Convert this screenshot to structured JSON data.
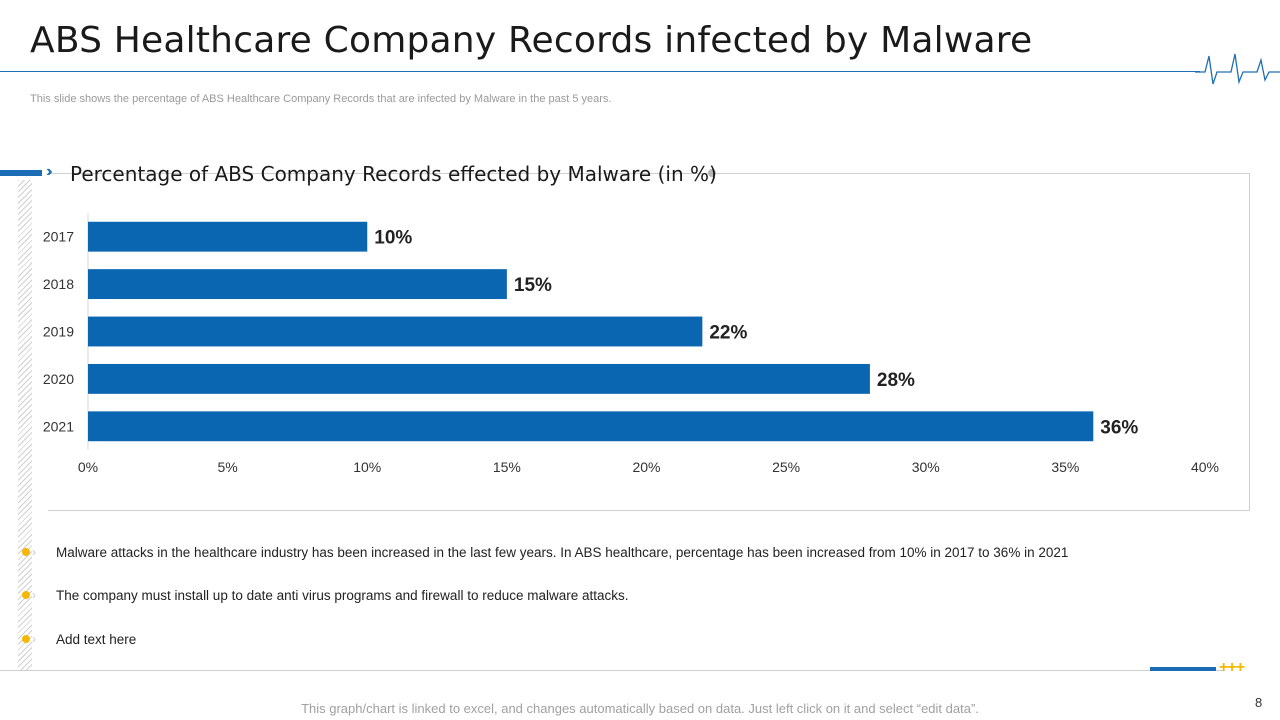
{
  "slide": {
    "title": "ABS Healthcare Company Records infected by Malware",
    "subtitle": "This slide shows the percentage of ABS Healthcare Company Records that are infected by Malware in the past 5 years.",
    "page_number": "8",
    "footer_note": "This graph/chart is linked to excel,  and changes automatically based on data. Just left click on it and select “edit data”.",
    "accent_color": "#1a6cb5",
    "bullet_color": "#f5b800"
  },
  "bullets": [
    "Malware attacks in the healthcare industry has been increased in the last few years. In ABS healthcare, percentage has been increased from 10% in 2017 to 36% in 2021",
    "The company must install up to date anti virus programs and firewall to reduce malware attacks.",
    "Add text here"
  ],
  "chart_data": {
    "type": "bar",
    "orientation": "horizontal",
    "title": "Percentage of ABS Company Records effected by Malware  (in %)",
    "categories": [
      "2017",
      "2018",
      "2019",
      "2020",
      "2021"
    ],
    "values": [
      10,
      15,
      22,
      28,
      36
    ],
    "data_labels": [
      "10%",
      "15%",
      "22%",
      "28%",
      "36%"
    ],
    "xlim": [
      0,
      40
    ],
    "x_ticks": [
      0,
      5,
      10,
      15,
      20,
      25,
      30,
      35,
      40
    ],
    "x_tick_labels": [
      "0%",
      "5%",
      "10%",
      "15%",
      "20%",
      "25%",
      "30%",
      "35%",
      "40%"
    ],
    "bar_color": "#0b66b2",
    "grid": false,
    "legend": "none"
  }
}
